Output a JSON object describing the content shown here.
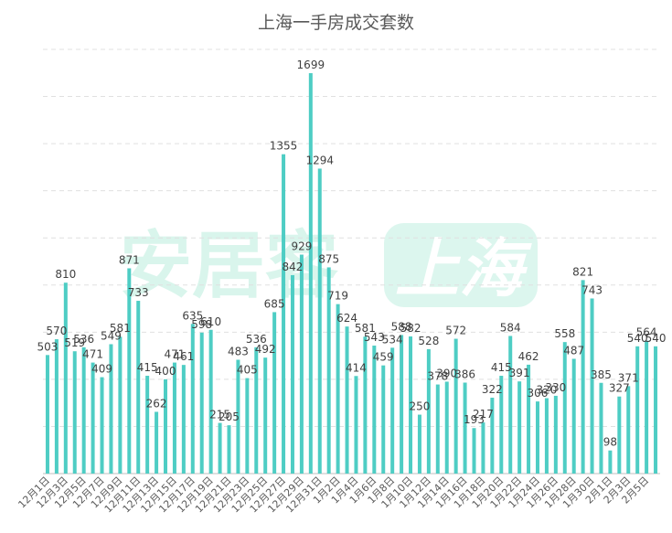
{
  "chart_data": {
    "type": "bar",
    "title": "上海一手房成交套数",
    "xlabel": "",
    "ylabel": "",
    "ylim": [
      0,
      1800
    ],
    "grid": true,
    "bar_color": "#4ecdc4",
    "watermark_text": "安居客上海",
    "categories": [
      "12月1日",
      "12月2日",
      "12月3日",
      "12月4日",
      "12月5日",
      "12月6日",
      "12月7日",
      "12月8日",
      "12月9日",
      "12月10日",
      "12月11日",
      "12月12日",
      "12月13日",
      "12月14日",
      "12月15日",
      "12月16日",
      "12月17日",
      "12月18日",
      "12月19日",
      "12月20日",
      "12月21日",
      "12月22日",
      "12月23日",
      "12月24日",
      "12月25日",
      "12月26日",
      "12月27日",
      "12月28日",
      "12月29日",
      "12月30日",
      "12月31日",
      "1月1日",
      "1月2日",
      "1月3日",
      "1月4日",
      "1月5日",
      "1月6日",
      "1月7日",
      "1月8日",
      "1月9日",
      "1月10日",
      "1月11日",
      "1月12日",
      "1月13日",
      "1月14日",
      "1月15日",
      "1月16日",
      "1月17日",
      "1月18日",
      "1月19日",
      "1月20日",
      "1月21日",
      "1月22日",
      "1月23日",
      "1月24日",
      "1月25日",
      "1月26日",
      "1月27日",
      "1月28日",
      "1月29日",
      "1月30日",
      "1月31日",
      "2月1日",
      "2月2日",
      "2月3日",
      "2月4日",
      "2月5日",
      "2月6日"
    ],
    "values": [
      503,
      570,
      810,
      519,
      536,
      471,
      409,
      549,
      581,
      871,
      733,
      415,
      262,
      400,
      471,
      461,
      635,
      598,
      610,
      215,
      205,
      483,
      405,
      536,
      492,
      685,
      1355,
      842,
      929,
      1699,
      1294,
      875,
      719,
      624,
      414,
      581,
      543,
      459,
      534,
      588,
      582,
      250,
      528,
      378,
      390,
      572,
      386,
      193,
      217,
      322,
      415,
      584,
      391,
      462,
      306,
      320,
      330,
      558,
      487,
      821,
      743,
      385,
      98,
      327,
      371,
      540,
      564,
      540
    ],
    "visible_tick_labels": [
      "12月1日",
      "12月3日",
      "12月5日",
      "12月7日",
      "12月9日",
      "12月11日",
      "12月13日",
      "12月15日",
      "12月17日",
      "12月19日",
      "12月21日",
      "12月23日",
      "12月25日",
      "12月27日",
      "12月29日",
      "12月31日",
      "1月2日",
      "1月4日",
      "1月6日",
      "1月8日",
      "1月10日",
      "1月12日",
      "1月14日",
      "1月16日",
      "1月18日",
      "1月20日",
      "1月22日",
      "1月24日",
      "1月26日",
      "1月28日",
      "1月30日",
      "2月1日",
      "2月3日",
      "2月5日"
    ]
  }
}
